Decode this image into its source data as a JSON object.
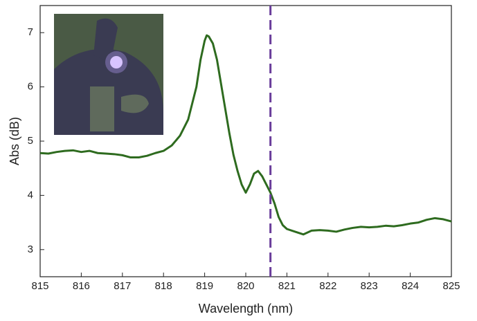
{
  "chart_data": {
    "type": "line",
    "xlabel": "Wavelength (nm)",
    "ylabel": "Abs (dB)",
    "xlim": [
      815,
      825
    ],
    "ylim": [
      2.5,
      7.5
    ],
    "xticks": [
      815,
      816,
      817,
      818,
      819,
      820,
      821,
      822,
      823,
      824,
      825
    ],
    "yticks": [
      3,
      4,
      5,
      6,
      7
    ],
    "vline": {
      "x": 820.6,
      "color": "#6a3d9a"
    },
    "series": [
      {
        "color": "#2e6b1f",
        "x": [
          815,
          815.2,
          815.4,
          815.6,
          815.8,
          816,
          816.2,
          816.4,
          816.6,
          816.8,
          817,
          817.2,
          817.4,
          817.6,
          817.8,
          818,
          818.2,
          818.4,
          818.6,
          818.8,
          818.9,
          819,
          819.05,
          819.1,
          819.2,
          819.3,
          819.4,
          819.5,
          819.6,
          819.7,
          819.8,
          819.9,
          820,
          820.1,
          820.2,
          820.3,
          820.4,
          820.5,
          820.6,
          820.7,
          820.8,
          820.9,
          821,
          821.2,
          821.4,
          821.6,
          821.8,
          822,
          822.2,
          822.4,
          822.6,
          822.8,
          823,
          823.2,
          823.4,
          823.6,
          823.8,
          824,
          824.2,
          824.4,
          824.6,
          824.8,
          825
        ],
        "values": [
          4.78,
          4.77,
          4.8,
          4.82,
          4.83,
          4.8,
          4.82,
          4.78,
          4.77,
          4.76,
          4.74,
          4.7,
          4.7,
          4.73,
          4.78,
          4.82,
          4.92,
          5.1,
          5.4,
          6.0,
          6.5,
          6.85,
          6.95,
          6.93,
          6.8,
          6.5,
          6.05,
          5.6,
          5.15,
          4.75,
          4.45,
          4.2,
          4.05,
          4.2,
          4.4,
          4.45,
          4.35,
          4.2,
          4.05,
          3.85,
          3.6,
          3.45,
          3.38,
          3.33,
          3.28,
          3.35,
          3.36,
          3.35,
          3.33,
          3.37,
          3.4,
          3.42,
          3.41,
          3.42,
          3.44,
          3.43,
          3.45,
          3.48,
          3.5,
          3.55,
          3.58,
          3.56,
          3.52
        ]
      }
    ]
  }
}
